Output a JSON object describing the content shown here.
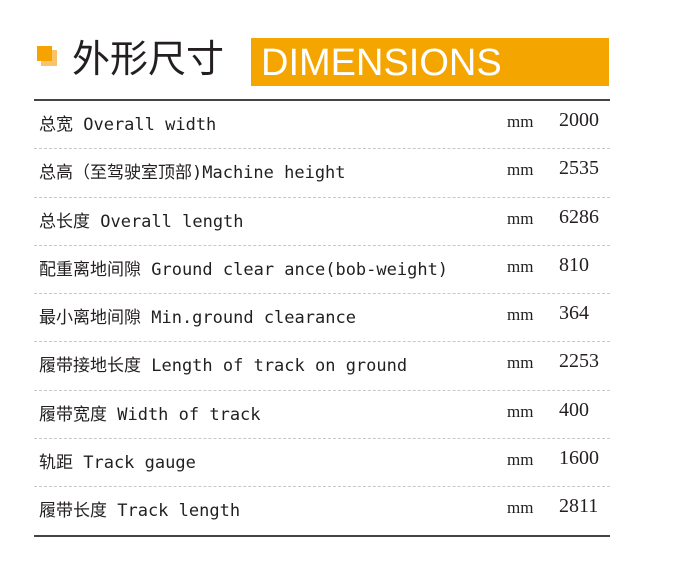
{
  "header": {
    "title_cn": "外形尺寸",
    "title_en": "DIMENSIONS",
    "accent": "#f5a500"
  },
  "rows": [
    {
      "label": "总宽 Overall width",
      "unit": "mm",
      "value": "2000"
    },
    {
      "label": "总高（至驾驶室顶部)Machine height",
      "unit": "mm",
      "value": "2535"
    },
    {
      "label": "总长度 Overall length",
      "unit": "mm",
      "value": "6286"
    },
    {
      "label": "配重离地间隙 Ground clear ance(bob-weight)",
      "unit": "mm",
      "value": "810"
    },
    {
      "label": "最小离地间隙 Min.ground clearance",
      "unit": "mm",
      "value": "364"
    },
    {
      "label": "履带接地长度 Length of track on ground",
      "unit": "mm",
      "value": "2253"
    },
    {
      "label": "履带宽度 Width of track",
      "unit": "mm",
      "value": "400"
    },
    {
      "label": "轨距 Track gauge",
      "unit": "mm",
      "value": "1600"
    },
    {
      "label": "履带长度 Track length",
      "unit": "mm",
      "value": "2811"
    }
  ]
}
